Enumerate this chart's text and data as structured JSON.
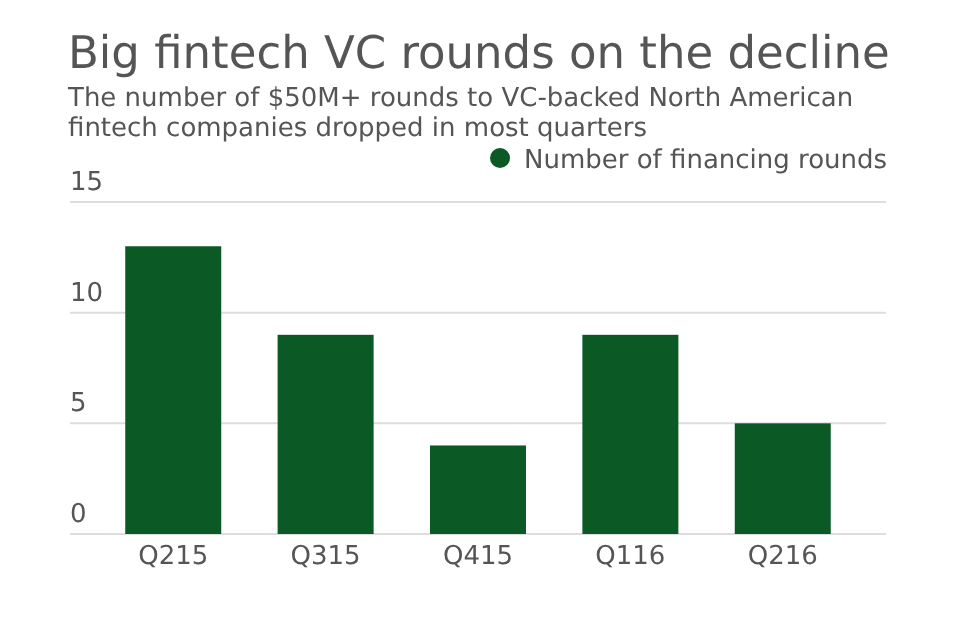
{
  "chart_data": {
    "type": "bar",
    "title": "Big fintech VC rounds on the decline",
    "subtitle": "The number of $50M+ rounds to VC-backed North American fintech companies dropped in most quarters",
    "categories": [
      "Q215",
      "Q315",
      "Q415",
      "Q116",
      "Q216"
    ],
    "series": [
      {
        "name": "Number of financing rounds",
        "color": "#0b5a26",
        "values": [
          13,
          9,
          4,
          9,
          5
        ]
      }
    ],
    "ylim": [
      0,
      15
    ],
    "yticks": [
      0,
      5,
      10,
      15
    ],
    "grid": "y",
    "legend": "top right"
  }
}
